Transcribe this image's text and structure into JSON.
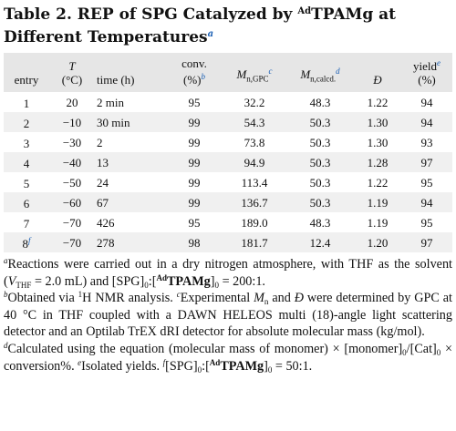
{
  "title": {
    "prefix": "Table 2. REP of SPG Catalyzed by ",
    "cat_sup": "Ad",
    "cat": "TPAMg",
    "suffix": " at Different Temperatures",
    "fn": "a"
  },
  "headers": {
    "entry": "entry",
    "T": "T",
    "T_unit": "(°C)",
    "time": "time (h)",
    "conv": "conv.",
    "conv_unit": "(%)",
    "conv_fn": "b",
    "mgpc_base": "M",
    "mgpc_sub": "n,GPC",
    "mgpc_fn": "c",
    "mcalc_base": "M",
    "mcalc_sub": "n,calcd.",
    "mcalc_fn": "d",
    "d": "Đ",
    "yield": "yield",
    "yield_unit": "(%)",
    "yield_fn": "e"
  },
  "rows": [
    {
      "entry": "1",
      "fn": "",
      "T": "20",
      "time": "2 min",
      "conv": "95",
      "mgpc": "32.2",
      "mcalc": "48.3",
      "d": "1.22",
      "yield": "94"
    },
    {
      "entry": "2",
      "fn": "",
      "T": "−10",
      "time": "30 min",
      "conv": "99",
      "mgpc": "54.3",
      "mcalc": "50.3",
      "d": "1.30",
      "yield": "94"
    },
    {
      "entry": "3",
      "fn": "",
      "T": "−30",
      "time": "2",
      "conv": "99",
      "mgpc": "73.8",
      "mcalc": "50.3",
      "d": "1.30",
      "yield": "93"
    },
    {
      "entry": "4",
      "fn": "",
      "T": "−40",
      "time": "13",
      "conv": "99",
      "mgpc": "94.9",
      "mcalc": "50.3",
      "d": "1.28",
      "yield": "97"
    },
    {
      "entry": "5",
      "fn": "",
      "T": "−50",
      "time": "24",
      "conv": "99",
      "mgpc": "113.4",
      "mcalc": "50.3",
      "d": "1.22",
      "yield": "95"
    },
    {
      "entry": "6",
      "fn": "",
      "T": "−60",
      "time": "67",
      "conv": "99",
      "mgpc": "136.7",
      "mcalc": "50.3",
      "d": "1.19",
      "yield": "94"
    },
    {
      "entry": "7",
      "fn": "",
      "T": "−70",
      "time": "426",
      "conv": "95",
      "mgpc": "189.0",
      "mcalc": "48.3",
      "d": "1.19",
      "yield": "95"
    },
    {
      "entry": "8",
      "fn": "f",
      "T": "−70",
      "time": "278",
      "conv": "98",
      "mgpc": "181.7",
      "mcalc": "12.4",
      "d": "1.20",
      "yield": "97"
    }
  ],
  "footnotes": {
    "a": "a",
    "a_text1": "Reactions were carried out in a dry nitrogen atmosphere, with THF as the solvent (",
    "a_V": "V",
    "a_Vsub": "THF",
    "a_text2": " = 2.0 mL) and [SPG]",
    "a_sub0": "0",
    "a_text3": ":[",
    "a_cat_sup": "Ad",
    "a_cat": "TPAMg",
    "a_text4": "]",
    "a_sub0b": "0",
    "a_text5": " = 200:1.",
    "b": "b",
    "b_text1": "Obtained via ",
    "b_sup1": "1",
    "b_text2": "H NMR analysis.",
    "c": "c",
    "c_text1": "Experimental ",
    "c_M": "M",
    "c_Msub": "n",
    "c_text2": " and ",
    "c_D": "Đ",
    "c_text3": " were determined by GPC at 40 °C in THF coupled with a DAWN HELEOS multi (18)-angle light scattering detector and an Optilab TrEX dRI detector for absolute molecular mass (kg/mol).",
    "d": "d",
    "d_text1": "Calculated using the equation (molecular mass of monomer) × [monomer]",
    "d_sub0": "0",
    "d_text2": "/[Cat]",
    "d_sub0b": "0",
    "d_text3": " × conversion%.",
    "e": "e",
    "e_text": "Isolated yields.",
    "f": "f",
    "f_text1": "[SPG]",
    "f_sub0": "0",
    "f_text2": ":[",
    "f_cat_sup": "Ad",
    "f_cat": "TPAMg",
    "f_text3": "]",
    "f_sub0b": "0",
    "f_text4": " = 50:1."
  }
}
